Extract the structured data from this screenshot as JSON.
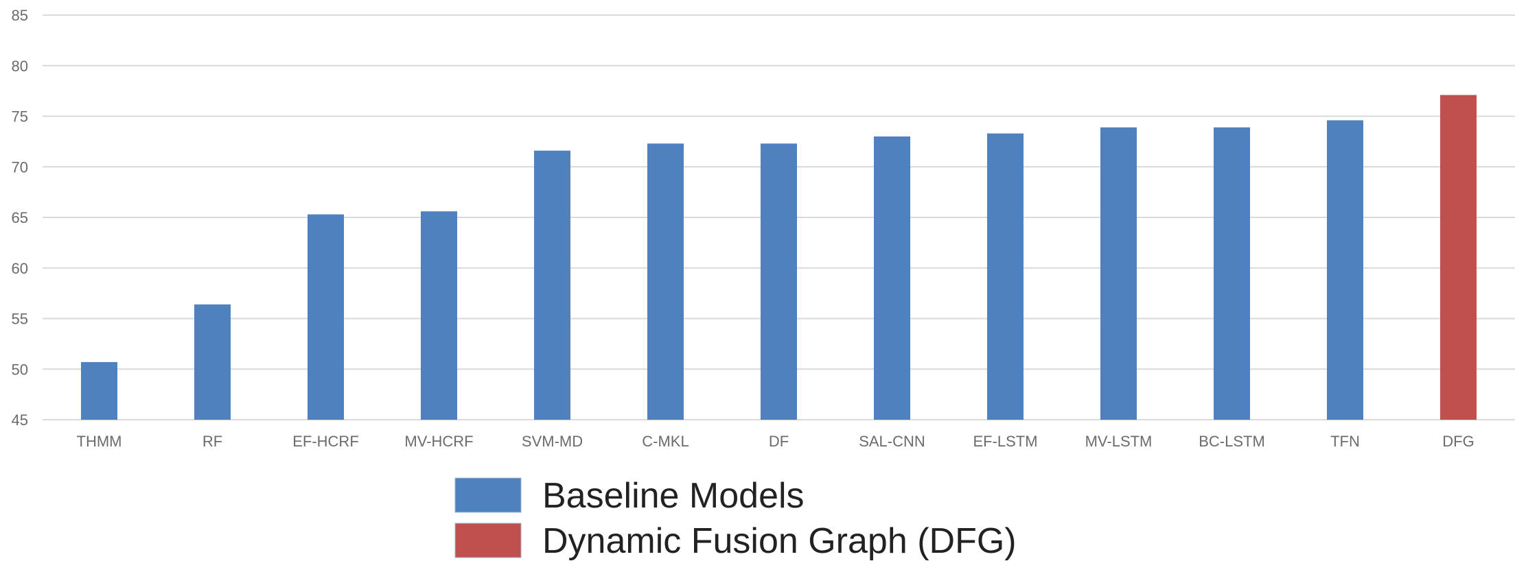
{
  "chart_data": {
    "type": "bar",
    "title": "",
    "xlabel": "",
    "ylabel": "",
    "ylim": [
      45,
      85
    ],
    "yticks": [
      45,
      50,
      55,
      60,
      65,
      70,
      75,
      80,
      85
    ],
    "grid": true,
    "categories": [
      "THMM",
      "RF",
      "EF-HCRF",
      "MV-HCRF",
      "SVM-MD",
      "C-MKL",
      "DF",
      "SAL-CNN",
      "EF-LSTM",
      "MV-LSTM",
      "BC-LSTM",
      "TFN",
      "DFG"
    ],
    "values": [
      50.7,
      56.4,
      65.3,
      65.6,
      71.6,
      72.3,
      72.3,
      73.0,
      73.3,
      73.9,
      73.9,
      74.6,
      77.1
    ],
    "groups": [
      "baseline",
      "baseline",
      "baseline",
      "baseline",
      "baseline",
      "baseline",
      "baseline",
      "baseline",
      "baseline",
      "baseline",
      "baseline",
      "baseline",
      "dfg"
    ],
    "legend_position": "bottom-center",
    "legend": [
      {
        "key": "baseline",
        "label": "Baseline Models",
        "color": "#4e81bd"
      },
      {
        "key": "dfg",
        "label": "Dynamic Fusion Graph (DFG)",
        "color": "#c0504d"
      }
    ]
  }
}
